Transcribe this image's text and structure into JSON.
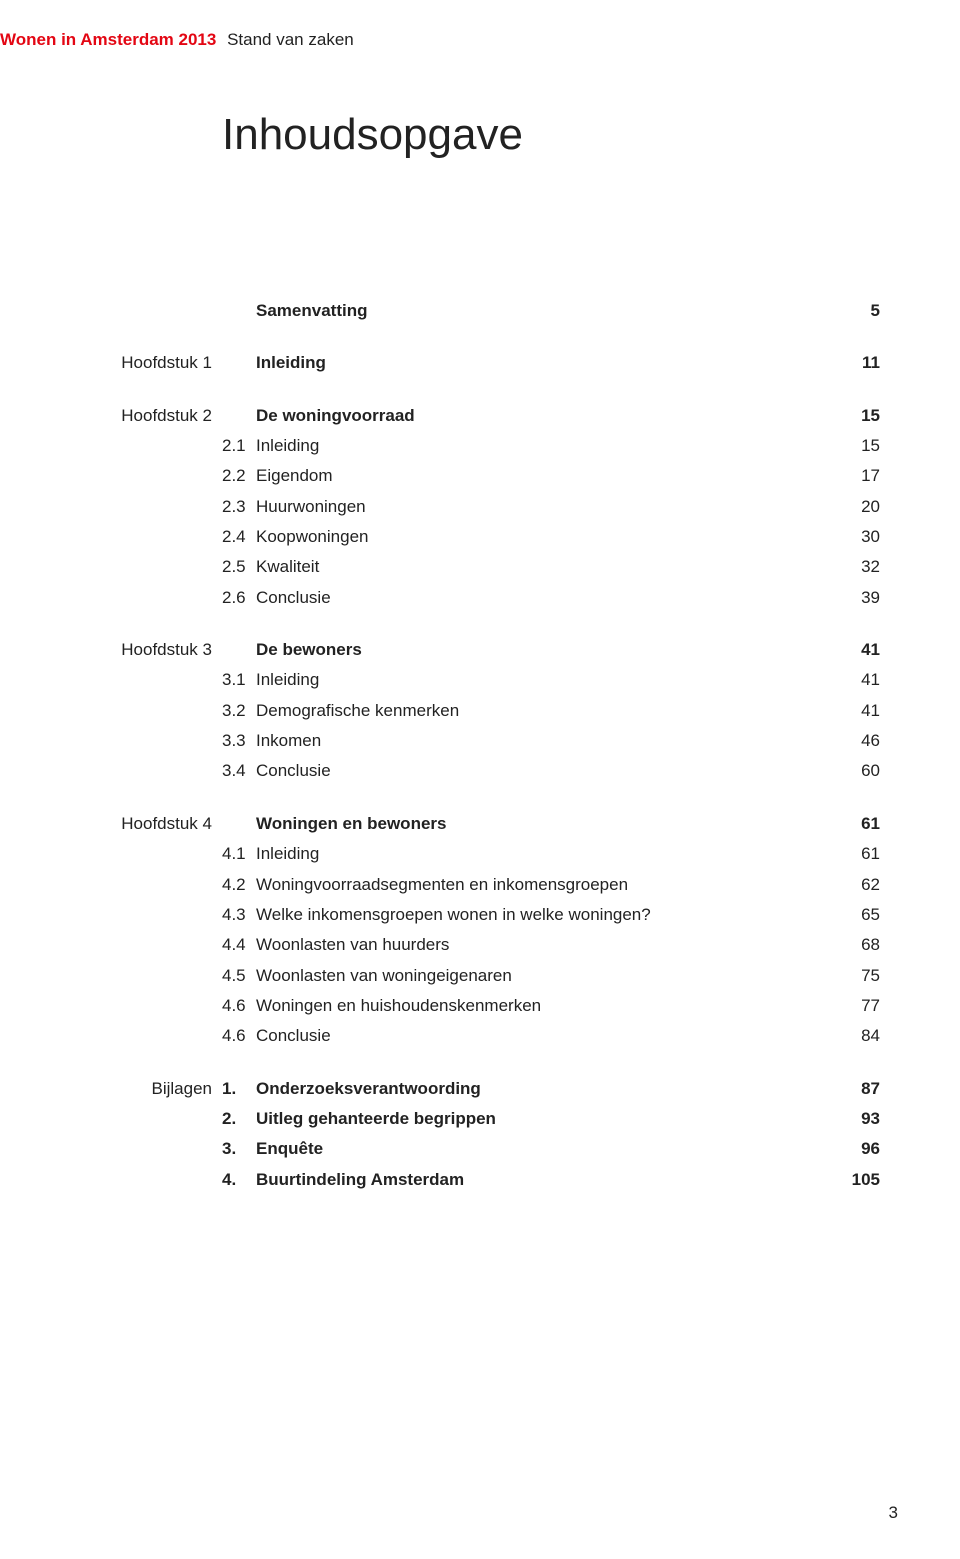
{
  "header": {
    "brand": "Wonen in Amsterdam 2013",
    "subtitle": "Stand van zaken"
  },
  "title": "Inhoudsopgave",
  "toc": [
    {
      "chapter": "",
      "head": {
        "num": "",
        "text": "Samenvatting",
        "page": "5",
        "bold": true
      }
    },
    {
      "chapter": "Hoofdstuk 1",
      "head": {
        "num": "",
        "text": "Inleiding",
        "page": "11",
        "bold": true
      }
    },
    {
      "chapter": "Hoofdstuk 2",
      "head": {
        "num": "",
        "text": "De woningvoorraad",
        "page": "15",
        "bold": true
      },
      "items": [
        {
          "num": "2.1",
          "text": "Inleiding",
          "page": "15"
        },
        {
          "num": "2.2",
          "text": "Eigendom",
          "page": "17"
        },
        {
          "num": "2.3",
          "text": "Huurwoningen",
          "page": "20"
        },
        {
          "num": "2.4",
          "text": "Koopwoningen",
          "page": "30"
        },
        {
          "num": "2.5",
          "text": "Kwaliteit",
          "page": "32"
        },
        {
          "num": "2.6",
          "text": "Conclusie",
          "page": "39"
        }
      ]
    },
    {
      "chapter": "Hoofdstuk 3",
      "head": {
        "num": "",
        "text": "De bewoners",
        "page": "41",
        "bold": true
      },
      "items": [
        {
          "num": "3.1",
          "text": "Inleiding",
          "page": "41"
        },
        {
          "num": "3.2",
          "text": "Demografische kenmerken",
          "page": "41"
        },
        {
          "num": "3.3",
          "text": "Inkomen",
          "page": "46"
        },
        {
          "num": "3.4",
          "text": "Conclusie",
          "page": "60"
        }
      ]
    },
    {
      "chapter": "Hoofdstuk 4",
      "head": {
        "num": "",
        "text": "Woningen en bewoners",
        "page": "61",
        "bold": true
      },
      "items": [
        {
          "num": "4.1",
          "text": "Inleiding",
          "page": "61"
        },
        {
          "num": "4.2",
          "text": "Woningvoorraadsegmenten en inkomensgroepen",
          "page": "62"
        },
        {
          "num": "4.3",
          "text": "Welke inkomensgroepen wonen in welke woningen?",
          "page": "65"
        },
        {
          "num": "4.4",
          "text": "Woonlasten van huurders",
          "page": "68"
        },
        {
          "num": "4.5",
          "text": "Woonlasten van woningeigenaren",
          "page": "75"
        },
        {
          "num": "4.6",
          "text": "Woningen en huishoudenskenmerken",
          "page": "77"
        },
        {
          "num": "4.6",
          "text": "Conclusie",
          "page": "84"
        }
      ]
    },
    {
      "chapter": "Bijlagen",
      "items": [
        {
          "num": "1.",
          "text": "Onderzoeksverantwoording",
          "page": "87",
          "bold": true
        },
        {
          "num": "2.",
          "text": "Uitleg gehanteerde begrippen",
          "page": "93",
          "bold": true
        },
        {
          "num": "3.",
          "text": "Enquête",
          "page": "96",
          "bold": true
        },
        {
          "num": "4.",
          "text": "Buurtindeling Amsterdam",
          "page": "105",
          "bold": true
        }
      ]
    }
  ],
  "footer": {
    "page": "3"
  },
  "style": {
    "brand_color": "#e30613",
    "text_color": "#222222",
    "background": "#ffffff",
    "title_fontsize": 44,
    "body_fontsize": 17
  }
}
